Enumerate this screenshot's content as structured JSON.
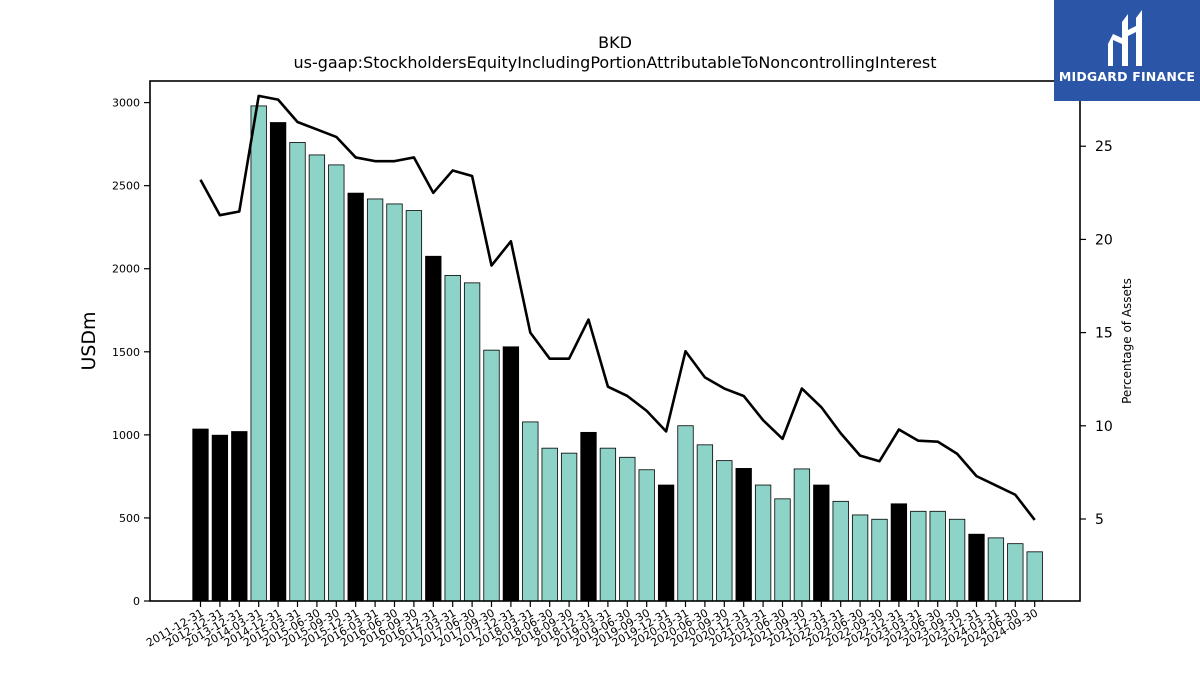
{
  "header": {
    "ticker": "BKD",
    "metric": "us-gaap:StockholdersEquityIncludingPortionAttributableToNoncontrollingInterest"
  },
  "logo": {
    "text": "MIDGARD FINANCE",
    "color": "#2b56a8"
  },
  "chart_data": {
    "type": "bar",
    "title": "BKD",
    "subtitle": "us-gaap:StockholdersEquityIncludingPortionAttributableToNoncontrollingInterest",
    "ylabel": "USDm",
    "y2label": "Percentage of Assets",
    "ylim": [
      0,
      3130
    ],
    "y2lim": [
      0.6,
      28.5
    ],
    "yticks": [
      0,
      500,
      1000,
      1500,
      2000,
      2500,
      3000
    ],
    "y2ticks": [
      5,
      10,
      15,
      20,
      25
    ],
    "categories": [
      "2011-12-31",
      "2012-12-31",
      "2013-12-31",
      "2014-03-31",
      "2014-12-31",
      "2015-03-31",
      "2015-06-30",
      "2015-09-30",
      "2015-12-31",
      "2016-03-31",
      "2016-06-30",
      "2016-09-30",
      "2016-12-31",
      "2017-03-31",
      "2017-06-30",
      "2017-09-30",
      "2017-12-31",
      "2018-03-31",
      "2018-06-30",
      "2018-09-30",
      "2018-12-31",
      "2019-03-31",
      "2019-06-30",
      "2019-09-30",
      "2019-12-31",
      "2020-03-31",
      "2020-06-30",
      "2020-09-30",
      "2020-12-31",
      "2021-03-31",
      "2021-06-30",
      "2021-09-30",
      "2021-12-31",
      "2022-03-31",
      "2022-06-30",
      "2022-09-30",
      "2022-12-31",
      "2023-03-31",
      "2023-06-30",
      "2023-09-30",
      "2023-12-31",
      "2024-03-31",
      "2024-06-30",
      "2024-09-30"
    ],
    "series": [
      {
        "type": "bar",
        "values": [
          1035,
          998,
          1020,
          2980,
          2880,
          2760,
          2685,
          2625,
          2455,
          2420,
          2390,
          2350,
          2075,
          1960,
          1915,
          1510,
          1530,
          1078,
          920,
          890,
          1015,
          920,
          865,
          790,
          698,
          1055,
          940,
          845,
          798,
          698,
          615,
          795,
          698,
          600,
          518,
          492,
          585,
          540,
          540,
          492,
          402,
          380,
          345,
          296
        ],
        "annual": [
          true,
          true,
          true,
          false,
          true,
          false,
          false,
          false,
          true,
          false,
          false,
          false,
          true,
          false,
          false,
          false,
          true,
          false,
          false,
          false,
          true,
          false,
          false,
          false,
          true,
          false,
          false,
          false,
          true,
          false,
          false,
          false,
          true,
          false,
          false,
          false,
          true,
          false,
          false,
          false,
          true,
          false,
          false,
          false
        ]
      },
      {
        "type": "line",
        "axis": "right",
        "values": [
          23.2,
          21.3,
          21.5,
          27.7,
          27.5,
          26.3,
          25.9,
          25.5,
          24.4,
          24.2,
          24.2,
          24.4,
          22.5,
          23.7,
          23.4,
          18.6,
          19.9,
          15.0,
          13.6,
          13.6,
          15.7,
          12.1,
          11.6,
          10.8,
          9.7,
          14.0,
          12.6,
          12.0,
          11.6,
          10.3,
          9.3,
          12.0,
          11.0,
          9.6,
          8.4,
          8.1,
          9.8,
          9.2,
          9.15,
          8.5,
          7.3,
          6.8,
          6.3,
          4.95
        ]
      }
    ],
    "colors": {
      "quarter_bar": "#8dd3c7",
      "annual_bar": "#000000",
      "line": "#000000",
      "edge": "#000000"
    },
    "grid": false,
    "legend": "none"
  }
}
